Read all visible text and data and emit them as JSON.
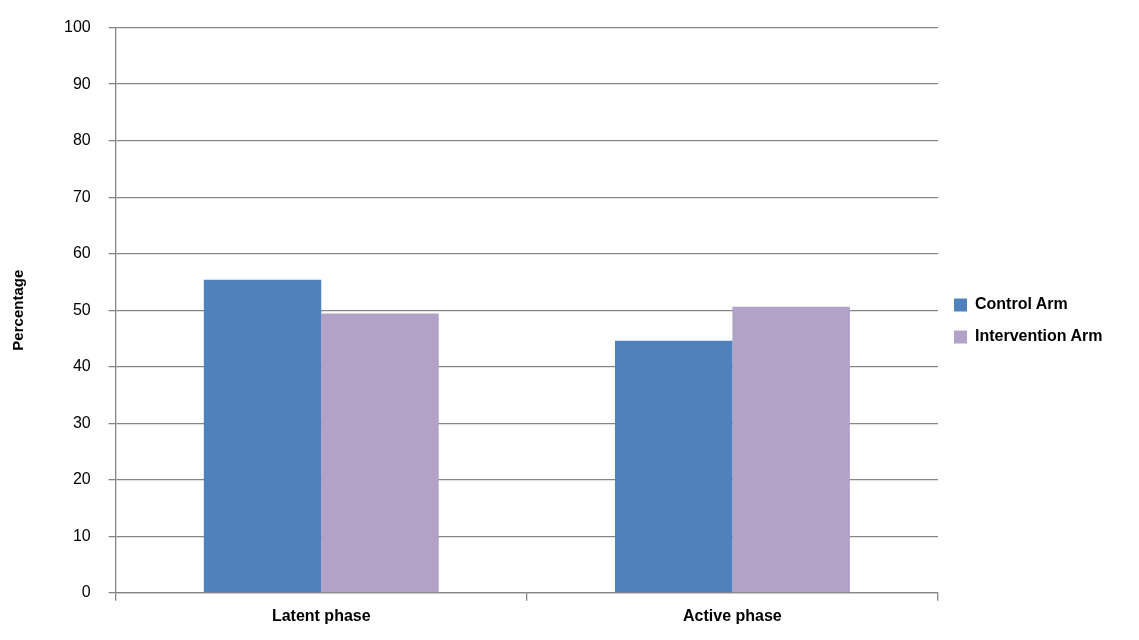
{
  "chart_data": {
    "type": "bar",
    "ylabel": "Percentage",
    "categories": [
      "Latent phase",
      "Active phase"
    ],
    "series": [
      {
        "name": "Control Arm",
        "color": "#4f81bd",
        "values": [
          55.4,
          44.6
        ]
      },
      {
        "name": "Intervention Arm",
        "color": "#b2a2c7",
        "values": [
          49.4,
          50.6
        ]
      }
    ],
    "ylim": [
      0,
      100
    ],
    "yticks": [
      0,
      10,
      20,
      30,
      40,
      50,
      60,
      70,
      80,
      90,
      100
    ],
    "grid": "y",
    "legend": "right"
  }
}
